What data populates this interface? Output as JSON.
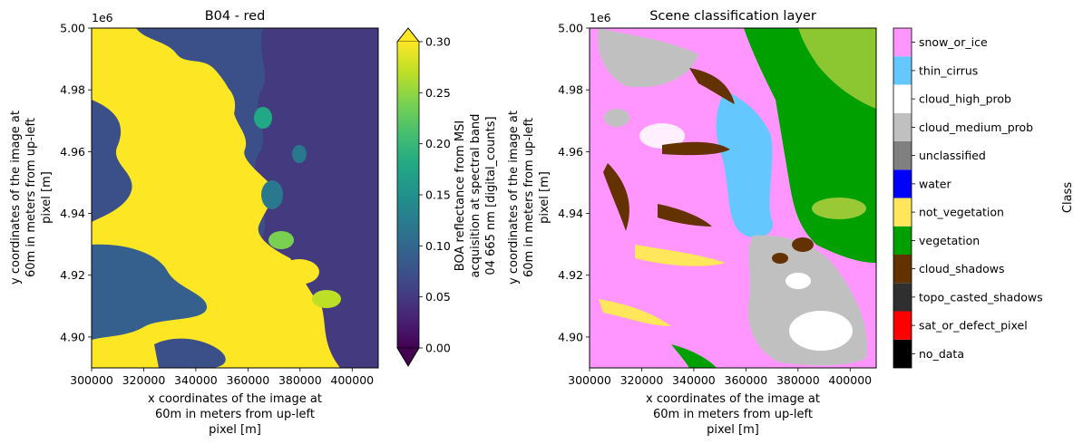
{
  "chart_data": [
    {
      "type": "heatmap",
      "title": "B04 - red",
      "xlabel": [
        "x coordinates of the image at",
        "60m in meters from up-left",
        "pixel [m]"
      ],
      "ylabel": [
        "y coordinates of the image at",
        "60m in meters from up-left",
        "pixel [m]"
      ],
      "xlim": [
        300000,
        410000
      ],
      "ylim": [
        4890000,
        5000000
      ],
      "x_ticks": [
        300000,
        320000,
        340000,
        360000,
        380000,
        400000
      ],
      "x_tick_labels": [
        "300000",
        "320000",
        "340000",
        "360000",
        "380000",
        "400000"
      ],
      "y_ticks": [
        4900000,
        4920000,
        4940000,
        4960000,
        4980000,
        5000000
      ],
      "y_tick_labels": [
        "4.90",
        "4.92",
        "4.94",
        "4.96",
        "4.98",
        "5.00"
      ],
      "y_offset_label": "1e6",
      "colorbar": {
        "colormap": "viridis",
        "range": [
          0.0,
          0.3
        ],
        "extend": "both",
        "ticks": [
          0.0,
          0.05,
          0.1,
          0.15,
          0.2,
          0.25,
          0.3
        ],
        "tick_labels": [
          "0.00",
          "0.05",
          "0.10",
          "0.15",
          "0.20",
          "0.25",
          "0.30"
        ],
        "label": [
          "BOA reflectance from MSI",
          "acquisition at spectral band",
          "04 665 nm [digital_counts]"
        ]
      }
    },
    {
      "type": "heatmap",
      "title": "Scene classification layer",
      "xlabel": [
        "x coordinates of the image at",
        "60m in meters from up-left",
        "pixel [m]"
      ],
      "ylabel": [
        "y coordinates of the image at",
        "60m in meters from up-left",
        "pixel [m]"
      ],
      "xlim": [
        300000,
        410000
      ],
      "ylim": [
        4890000,
        5000000
      ],
      "x_ticks": [
        300000,
        320000,
        340000,
        360000,
        380000,
        400000
      ],
      "x_tick_labels": [
        "300000",
        "320000",
        "340000",
        "360000",
        "380000",
        "400000"
      ],
      "y_ticks": [
        4900000,
        4920000,
        4940000,
        4960000,
        4980000,
        5000000
      ],
      "y_tick_labels": [
        "4.90",
        "4.92",
        "4.94",
        "4.96",
        "4.98",
        "5.00"
      ],
      "y_offset_label": "1e6",
      "colorbar": {
        "label": "Class",
        "classes": [
          {
            "name": "no_data",
            "color": "#000000"
          },
          {
            "name": "sat_or_defect_pixel",
            "color": "#ff0000"
          },
          {
            "name": "topo_casted_shadows",
            "color": "#2f2f2f"
          },
          {
            "name": "cloud_shadows",
            "color": "#643200"
          },
          {
            "name": "vegetation",
            "color": "#00a000"
          },
          {
            "name": "not_vegetation",
            "color": "#ffe65a"
          },
          {
            "name": "water",
            "color": "#0000ff"
          },
          {
            "name": "unclassified",
            "color": "#808080"
          },
          {
            "name": "cloud_medium_prob",
            "color": "#c0c0c0"
          },
          {
            "name": "cloud_high_prob",
            "color": "#ffffff"
          },
          {
            "name": "thin_cirrus",
            "color": "#64c8ff"
          },
          {
            "name": "snow_or_ice",
            "color": "#ff96ff"
          }
        ]
      }
    }
  ]
}
